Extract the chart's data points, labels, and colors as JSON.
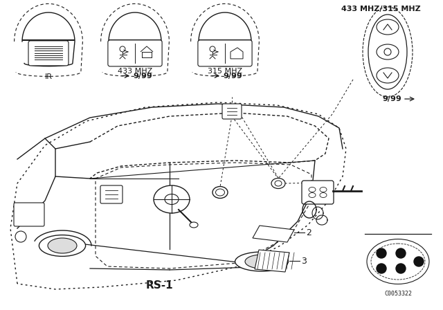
{
  "bg_color": "#ffffff",
  "line_color": "#1a1a1a",
  "fig_width": 6.4,
  "fig_height": 4.48,
  "dpi": 100,
  "label_ir": "IR",
  "label_433": "433 MHZ",
  "label_315": "315 MHZ",
  "label_433_315": "433 MHZ/315 MHZ",
  "label_999": "9/99",
  "label_rs1": "RS-1",
  "label_2": "2",
  "label_3": "3",
  "label_code": "C0053322"
}
